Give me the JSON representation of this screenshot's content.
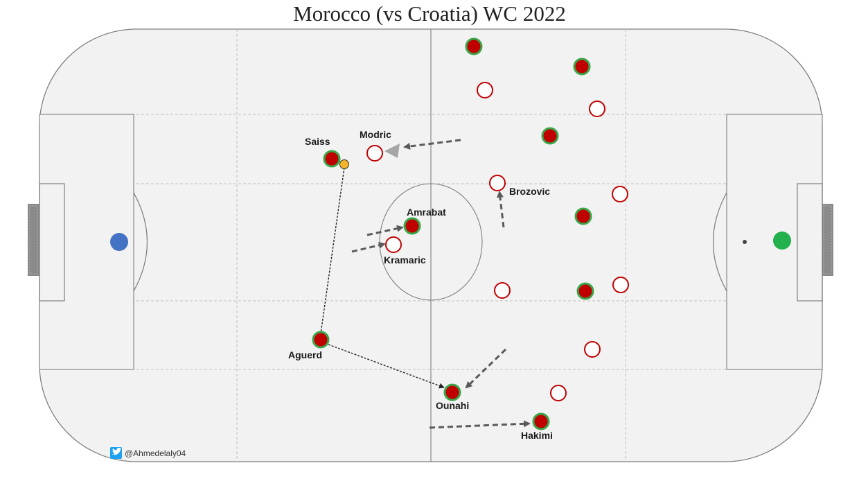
{
  "title": "Morocco (vs Croatia) WC 2022",
  "credit": "@Ahmedelaly04",
  "colors": {
    "pitch_fill": "#f2f2f2",
    "pitch_line": "#7f7f7f",
    "grid_line": "#bdbdbd",
    "morocco_fill": "#c00000",
    "morocco_ring": "#3aa64a",
    "croatia_fill": "#ffffff",
    "croatia_ring": "#c00000",
    "ball": "#f0b429",
    "left_marker": "#4472c4",
    "right_marker": "#22b14c",
    "arrow": "#5a5a5a",
    "twitter": "#1da1f2"
  },
  "players": {
    "morocco": [
      {
        "name": "Saiss"
      },
      {
        "name": "Amrabat"
      },
      {
        "name": "Aguerd"
      },
      {
        "name": "Ounahi"
      },
      {
        "name": "Hakimi"
      },
      {
        "name": ""
      },
      {
        "name": ""
      },
      {
        "name": ""
      },
      {
        "name": ""
      },
      {
        "name": ""
      }
    ],
    "croatia": [
      {
        "name": "Modric"
      },
      {
        "name": "Brozovic"
      },
      {
        "name": "Kramaric"
      },
      {
        "name": ""
      },
      {
        "name": ""
      },
      {
        "name": ""
      },
      {
        "name": ""
      },
      {
        "name": ""
      },
      {
        "name": ""
      },
      {
        "name": ""
      }
    ]
  }
}
